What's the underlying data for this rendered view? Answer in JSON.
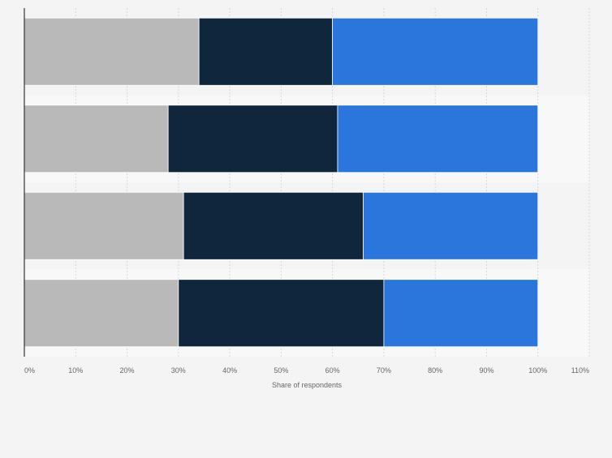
{
  "chart_data": {
    "type": "bar",
    "orientation": "horizontal",
    "stacked": true,
    "title": "",
    "xlabel": "Share of respondents",
    "ylabel": "",
    "xlim": [
      0,
      110
    ],
    "x_ticks": [
      "0%",
      "10%",
      "20%",
      "30%",
      "40%",
      "50%",
      "60%",
      "70%",
      "80%",
      "90%",
      "100%",
      "110%"
    ],
    "grid": "vertical, dashed",
    "legend": "none",
    "categories": [
      "",
      "",
      "",
      ""
    ],
    "series": [
      {
        "color": "#b9b9b9",
        "values": [
          34,
          28,
          31,
          30
        ]
      },
      {
        "color": "#0f263d",
        "values": [
          26,
          33,
          35,
          40
        ]
      },
      {
        "color": "#2a76dc",
        "values": [
          40,
          39,
          34,
          30
        ]
      }
    ]
  },
  "colors": {
    "background": "#f4f4f4",
    "band_light": "#f8f8f8",
    "grid": "#d8d8d8",
    "axis": "#333333",
    "tick_text": "#666666"
  }
}
